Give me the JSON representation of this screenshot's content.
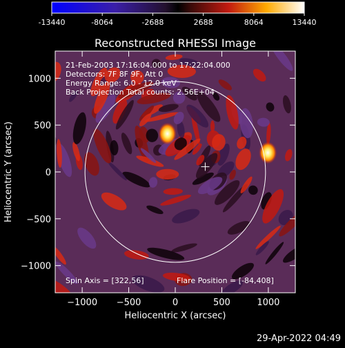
{
  "chart_data": {
    "type": "heatmap",
    "title": "Reconstructed RHESSI Image",
    "xlabel": "Heliocentric X (arcsec)",
    "ylabel": "Heliocentric Y (arcsec)",
    "xlim": [
      -1290,
      1290
    ],
    "ylim": [
      -1290,
      1290
    ],
    "x_ticks": [
      -1000,
      -500,
      0,
      500,
      1000
    ],
    "y_ticks": [
      -1000,
      -500,
      0,
      500,
      1000
    ],
    "colorbar": {
      "range": [
        -13440,
        13440
      ],
      "ticks": [
        -13440,
        -8064,
        -2688,
        2688,
        8064,
        13440
      ]
    },
    "info_lines": [
      "21-Feb-2003 17:16:04.000 to 17:22:04.000",
      "Detectors: 7F 8F 9F, Att 0",
      "Energy Range: 6.0 - 12.0 keV",
      "Back Projection     Total counts: 2.56E+04"
    ],
    "spin_axis_label": "Spin Axis = [322,56]",
    "flare_position_label": "Flare Position = [-84,408]",
    "solar_limb_radius": 970,
    "marker": {
      "x": 322,
      "y": 56
    },
    "sources": [
      {
        "x": -84,
        "y": 408,
        "peak": 13440
      },
      {
        "x": 995,
        "y": 205,
        "peak": 12000
      }
    ]
  },
  "timestamp": "29-Apr-2022 04:49"
}
